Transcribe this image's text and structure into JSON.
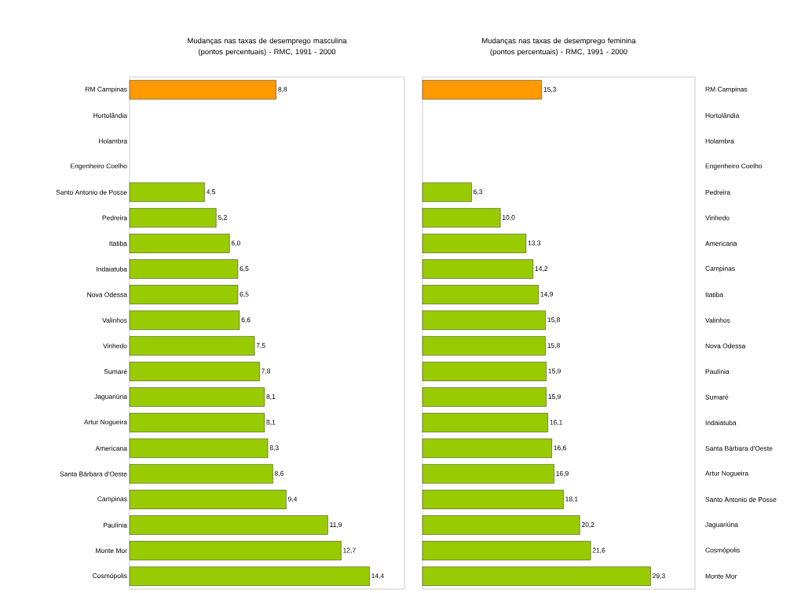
{
  "chart_data": [
    {
      "type": "bar",
      "orientation": "horizontal",
      "title": "Mudanças nas taxas de desemprego masculina (pontos percentuais) - RMC, 1991 - 2000",
      "categories": [
        "RM Campinas",
        "Hortolândia",
        "Holambra",
        "Engenheiro Coelho",
        "Santo Antonio de Posse",
        "Pedreira",
        "Itatiba",
        "Indaiatuba",
        "Nova Odessa",
        "Valinhos",
        "Vinhedo",
        "Sumaré",
        "Jaguariúna",
        "Artur Nogueira",
        "Americana",
        "Santa Bárbara d'Oeste",
        "Campinas",
        "Paulínia",
        "Monte Mor",
        "Cosmópolis"
      ],
      "values": [
        8.8,
        null,
        null,
        null,
        4.5,
        5.2,
        6.0,
        6.5,
        6.5,
        6.6,
        7.5,
        7.8,
        8.1,
        8.1,
        8.3,
        8.6,
        9.4,
        11.9,
        12.7,
        14.4
      ],
      "value_labels": [
        "8,8",
        null,
        null,
        null,
        "4,5",
        "5,2",
        "6,0",
        "6,5",
        "6,5",
        "6,6",
        "7,5",
        "7,8",
        "8,1",
        "8,1",
        "8,3",
        "8,6",
        "9,4",
        "11,9",
        "12,7",
        "14,4"
      ],
      "colors": [
        "#ff9900",
        "#99cc00",
        "#99cc00",
        "#99cc00",
        "#99cc00",
        "#99cc00",
        "#99cc00",
        "#99cc00",
        "#99cc00",
        "#99cc00",
        "#99cc00",
        "#99cc00",
        "#99cc00",
        "#99cc00",
        "#99cc00",
        "#99cc00",
        "#99cc00",
        "#99cc00",
        "#99cc00",
        "#99cc00"
      ],
      "xlim": [
        0,
        16.5
      ],
      "tick_labels": "y",
      "grid": false
    },
    {
      "type": "bar",
      "orientation": "horizontal",
      "title": "Mudanças nas taxas de desemprego feminina (pontos percentuais) - RMC, 1991 - 2000",
      "categories": [
        "RM Campinas",
        "Hortolândia",
        "Holambra",
        "Engenheiro Coelho",
        "Pedreira",
        "Vinhedo",
        "Americana",
        "Campinas",
        "Itatiba",
        "Valinhos",
        "Nova Odessa",
        "Paulínia",
        "Sumaré",
        "Indaiatuba",
        "Santa Bárbara d'Oeste",
        "Artur Nogueira",
        "Santo Antonio de Posse",
        "Jaguariúna",
        "Cosmópolis",
        "Monte Mor"
      ],
      "values": [
        15.3,
        null,
        null,
        null,
        6.3,
        10.0,
        13.3,
        14.2,
        14.9,
        15.8,
        15.8,
        15.9,
        15.9,
        16.1,
        16.6,
        16.9,
        18.1,
        20.2,
        21.6,
        29.3
      ],
      "value_labels": [
        "15,3",
        null,
        null,
        null,
        "6,3",
        "10,0",
        "13,3",
        "14,2",
        "14,9",
        "15,8",
        "15,8",
        "15,9",
        "15,9",
        "16,1",
        "16,6",
        "16,9",
        "18,1",
        "20,2",
        "21,6",
        "29,3"
      ],
      "colors": [
        "#ff9900",
        "#99cc00",
        "#99cc00",
        "#99cc00",
        "#99cc00",
        "#99cc00",
        "#99cc00",
        "#99cc00",
        "#99cc00",
        "#99cc00",
        "#99cc00",
        "#99cc00",
        "#99cc00",
        "#99cc00",
        "#99cc00",
        "#99cc00",
        "#99cc00",
        "#99cc00",
        "#99cc00",
        "#99cc00"
      ],
      "xlim": [
        0,
        35
      ],
      "tick_labels": "y",
      "grid": false
    }
  ]
}
